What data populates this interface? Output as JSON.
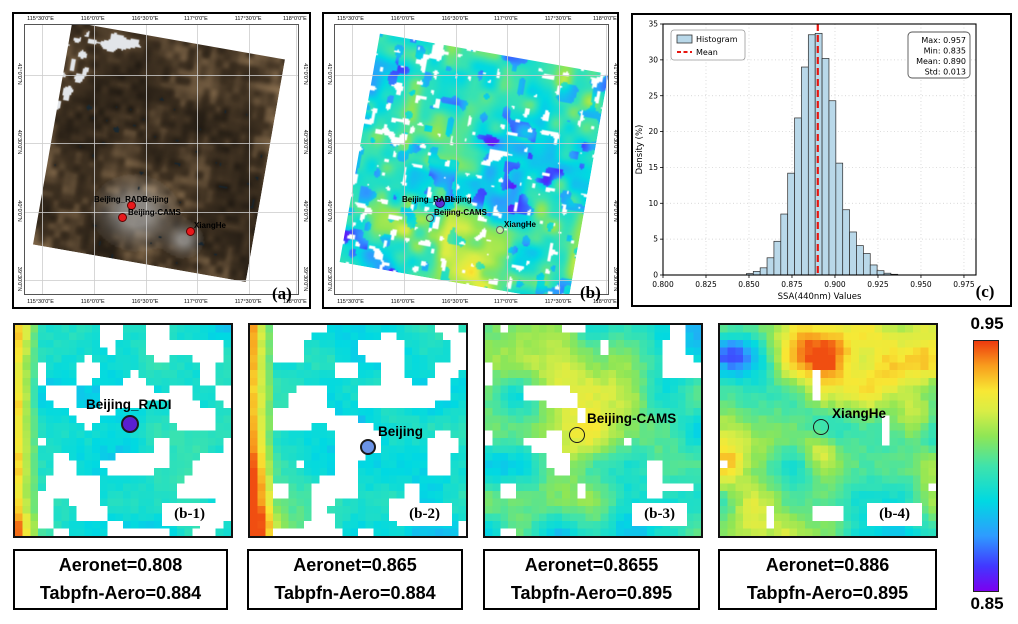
{
  "panel_a": {
    "label": "(a)",
    "top_ticks": [
      "115°30'0\"E",
      "116°0'0\"E",
      "116°30'0\"E",
      "117°0'0\"E",
      "117°30'0\"E",
      "118°0'0\"E"
    ],
    "bottom_ticks": [
      "115°30'0\"E",
      "116°0'0\"E",
      "116°30'0\"E",
      "117°0'0\"E",
      "117°30'0\"E",
      "118°0'0\"E"
    ],
    "left_ticks": [
      "41°0'0\"N",
      "40°30'0\"N",
      "40°0'0\"N",
      "39°30'0\"N"
    ],
    "right_ticks": [
      "41°0'0\"N",
      "40°30'0\"N",
      "40°0'0\"N",
      "39°30'0\"N"
    ],
    "sites": [
      {
        "name": "Beijing_RADI"
      },
      {
        "name": "Beijing"
      },
      {
        "name": "Beijing-CAMS"
      },
      {
        "name": "XiangHe"
      }
    ],
    "marker_color": "#e8191c"
  },
  "panel_b": {
    "label": "(b)",
    "top_ticks": [
      "115°30'0\"E",
      "116°0'0\"E",
      "116°30'0\"E",
      "117°0'0\"E",
      "117°30'0\"E",
      "118°0'0\"E"
    ],
    "bottom_ticks": [
      "115°30'0\"E",
      "116°0'0\"E",
      "116°30'0\"E",
      "117°0'0\"E",
      "117°30'0\"E",
      "118°0'0\"E"
    ],
    "left_ticks": [
      "41°0'0\"N",
      "40°30'0\"N",
      "40°0'0\"N",
      "39°30'0\"N"
    ],
    "right_ticks": [
      "41°0'0\"N",
      "40°30'0\"N",
      "40°0'0\"N",
      "39°30'0\"N"
    ],
    "sites": [
      {
        "name": "Beijing_RADI"
      },
      {
        "name": "Beijing"
      },
      {
        "name": "Beijing-CAMS"
      },
      {
        "name": "XiangHe"
      }
    ],
    "dot_color": "#5a2fd6"
  },
  "chart_data": {
    "type": "bar",
    "subtype": "histogram",
    "panel_label": "(c)",
    "xlabel": "SSA(440nm) Values",
    "ylabel": "Density (%)",
    "xlim": [
      0.8,
      0.982
    ],
    "ylim": [
      0,
      35
    ],
    "x_ticks": [
      "0.800",
      "0.825",
      "0.850",
      "0.875",
      "0.900",
      "0.925",
      "0.950",
      "0.975"
    ],
    "y_ticks": [
      0,
      5,
      10,
      15,
      20,
      25,
      30,
      35
    ],
    "bin_start": 0.8485,
    "bin_width": 0.004,
    "density_percent": [
      0.2,
      0.5,
      1.0,
      2.4,
      4.7,
      8.5,
      14.2,
      21.9,
      29.0,
      33.5,
      33.7,
      30.2,
      24.3,
      15.6,
      9.1,
      6.0,
      4.1,
      3.0,
      1.4,
      0.6,
      0.25,
      0.1
    ],
    "mean": 0.89,
    "legend": [
      "Histogram",
      "Mean"
    ],
    "stats_lines": [
      "Max: 0.957",
      "Min: 0.835",
      "Mean: 0.890",
      "Std: 0.013"
    ],
    "bar_color": "#b9d8e9",
    "bar_edge_color": "#2a2a2a",
    "mean_line_color": "#e8150f",
    "grid": "dotted"
  },
  "sub_panels": [
    {
      "tag": "(b-1)",
      "site": "Beijing_RADI",
      "marker_fill": "#5a1fd0",
      "marker_style": "filled"
    },
    {
      "tag": "(b-2)",
      "site": "Beijing",
      "marker_fill": "#6b93e6",
      "marker_style": "filled"
    },
    {
      "tag": "(b-3)",
      "site": "Beijing-CAMS",
      "marker_fill": "transparent",
      "marker_style": "open"
    },
    {
      "tag": "(b-4)",
      "site": "XiangHe",
      "marker_fill": "transparent",
      "marker_style": "open"
    }
  ],
  "value_boxes": [
    {
      "aeronet": "Aeronet=0.808",
      "tabpfn": "Tabpfn-Aero=0.884"
    },
    {
      "aeronet": "Aeronet=0.865",
      "tabpfn": "Tabpfn-Aero=0.884"
    },
    {
      "aeronet": "Aeronet=0.8655",
      "tabpfn": "Tabpfn-Aero=0.895"
    },
    {
      "aeronet": "Aeronet=0.886",
      "tabpfn": "Tabpfn-Aero=0.895"
    }
  ],
  "colorbar": {
    "max_label": "0.95",
    "min_label": "0.85",
    "stops": [
      [
        0,
        "#7b00f0"
      ],
      [
        0.1,
        "#4138ff"
      ],
      [
        0.22,
        "#2e9bff"
      ],
      [
        0.36,
        "#00d9e2"
      ],
      [
        0.5,
        "#3fe3ab"
      ],
      [
        0.62,
        "#8fe655"
      ],
      [
        0.72,
        "#d9ed45"
      ],
      [
        0.8,
        "#f8e834"
      ],
      [
        0.9,
        "#f89e1d"
      ],
      [
        1,
        "#ee3a0e"
      ]
    ]
  }
}
